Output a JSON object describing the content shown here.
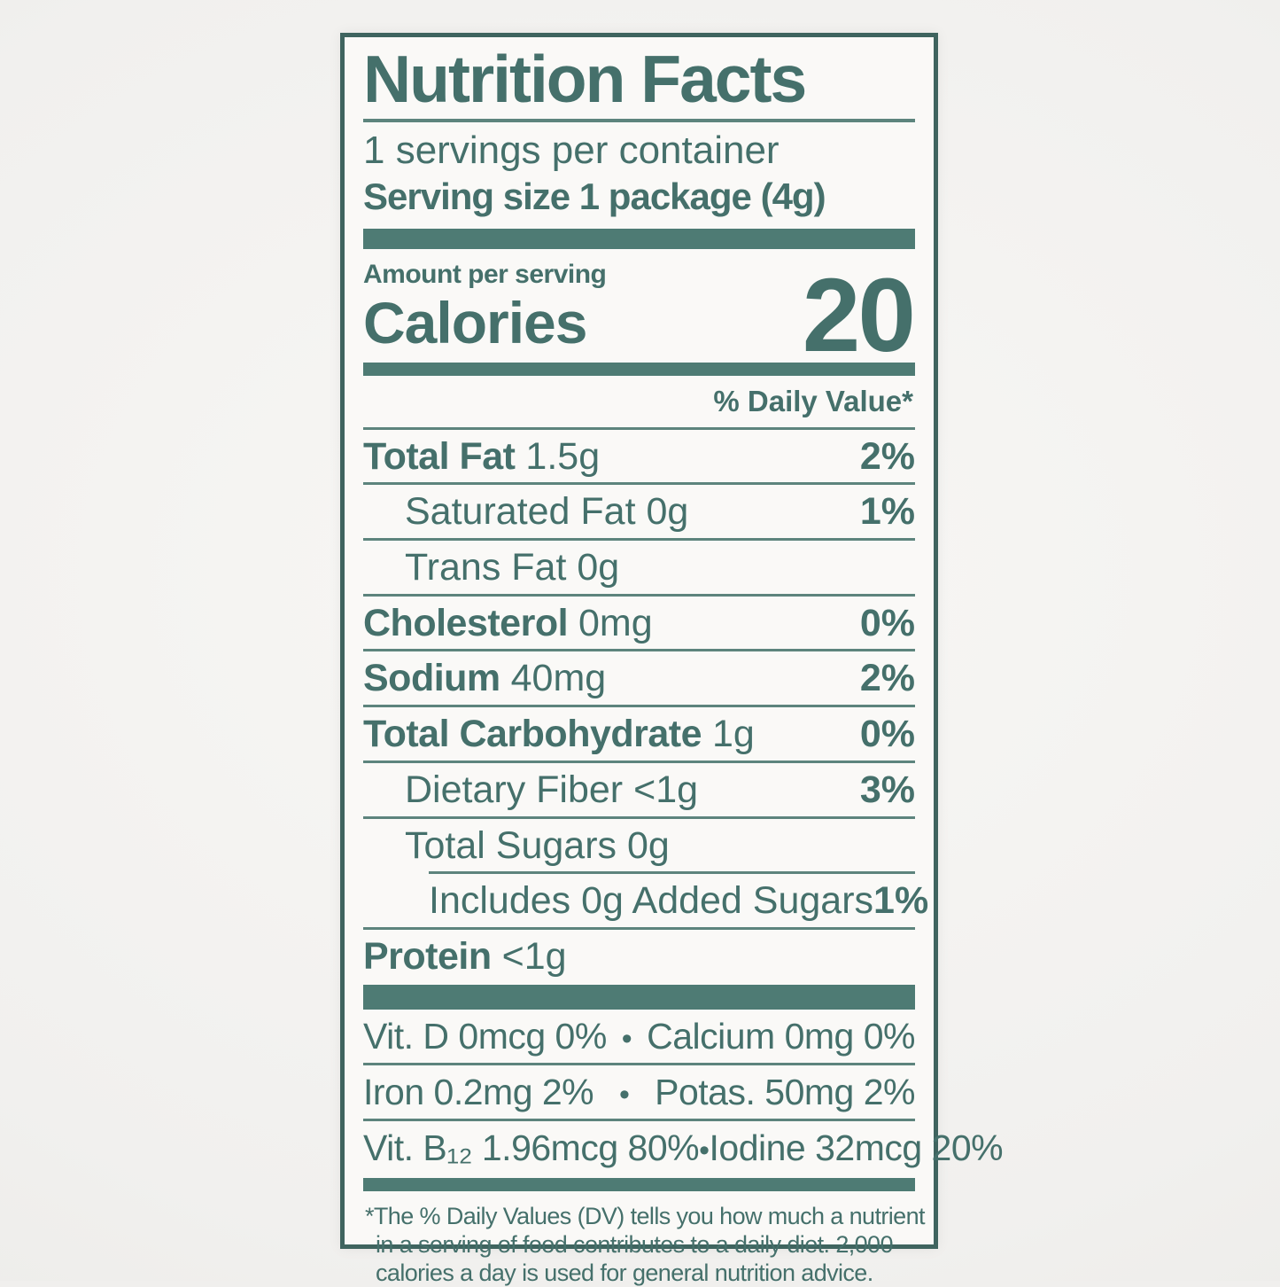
{
  "colors": {
    "ink": "#45706b",
    "bar": "#4e7b74",
    "rule": "#5d847d",
    "border": "#3f645f",
    "label_bg": "#faf9f7",
    "page_bg": "#f0efed"
  },
  "label": {
    "title": "Nutrition Facts",
    "servings_per_container": "1 servings per container",
    "serving_size": "Serving size 1 package (4g)",
    "amount_per_serving": "Amount per serving",
    "calories_label": "Calories",
    "calories_value": "20",
    "daily_value_header": "% Daily Value*",
    "bullet": "•",
    "nutrients": [
      {
        "name": "Total Fat",
        "amount": "1.5g",
        "dv": "2%"
      },
      {
        "name": "Saturated Fat",
        "amount": "0g",
        "dv": "1%"
      },
      {
        "name": "Trans Fat",
        "amount": "0g",
        "dv": ""
      },
      {
        "name": "Cholesterol",
        "amount": "0mg",
        "dv": "0%"
      },
      {
        "name": "Sodium",
        "amount": "40mg",
        "dv": "2%"
      },
      {
        "name": "Total Carbohydrate",
        "amount": "1g",
        "dv": "0%"
      },
      {
        "name": "Dietary Fiber",
        "amount": "<1g",
        "dv": "3%"
      },
      {
        "name": "Total Sugars",
        "amount": "0g",
        "dv": ""
      },
      {
        "name": "Includes 0g Added Sugars",
        "amount": "",
        "dv": "1%"
      },
      {
        "name": "Protein",
        "amount": "<1g",
        "dv": ""
      }
    ],
    "micronutrients": [
      {
        "left": "Vit. D 0mcg 0%",
        "right": "Calcium 0mg 0%"
      },
      {
        "left": "Iron 0.2mg 2%",
        "right": "Potas. 50mg 2%"
      },
      {
        "left": "Vit. B₁₂ 1.96mcg 80%",
        "right": "Iodine 32mcg  20%"
      }
    ],
    "footnote_lines": [
      "*The % Daily Values (DV) tells you how much a nutrient",
      "in a serving of food contributes to a daily diet. 2,000",
      "calories a day is used for general nutrition advice."
    ]
  }
}
